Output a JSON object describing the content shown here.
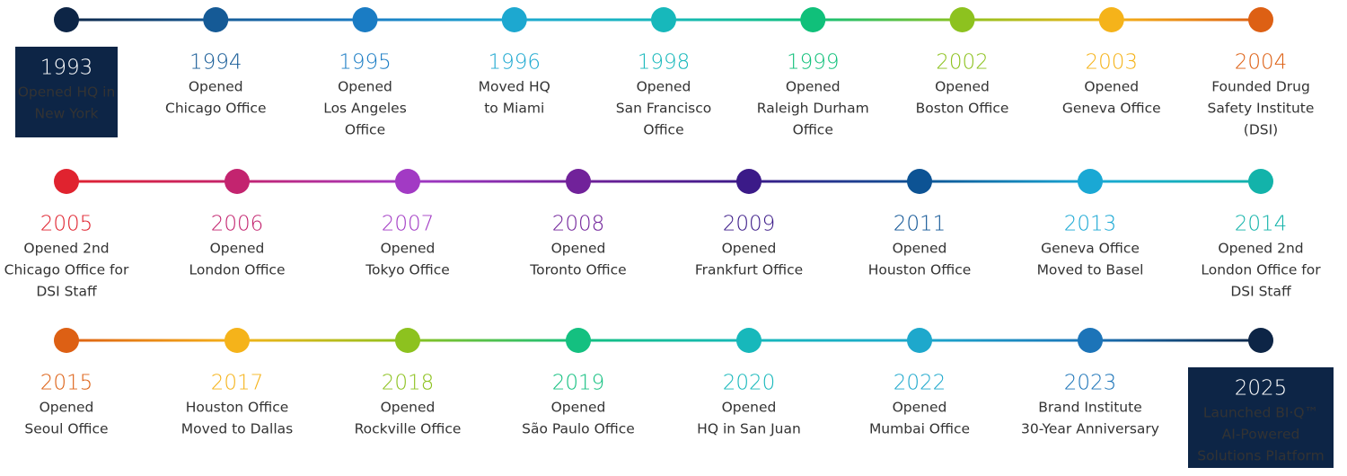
{
  "rows": [
    {
      "events": [
        {
          "year": "1993",
          "lines": [
            "Opened HQ in",
            "New York"
          ],
          "color": "#0d2546",
          "highlight": true
        },
        {
          "year": "1994",
          "lines": [
            "Opened",
            "Chicago Office"
          ],
          "color": "#155a96"
        },
        {
          "year": "1995",
          "lines": [
            "Opened",
            "Los Angeles",
            "Office"
          ],
          "color": "#1a7cc4"
        },
        {
          "year": "1996",
          "lines": [
            "Moved HQ",
            "to Miami"
          ],
          "color": "#1da8d0"
        },
        {
          "year": "1998",
          "lines": [
            "Opened",
            "San Francisco",
            "Office"
          ],
          "color": "#17b8bb"
        },
        {
          "year": "1999",
          "lines": [
            "Opened",
            "Raleigh Durham",
            "Office"
          ],
          "color": "#10c07a"
        },
        {
          "year": "2002",
          "lines": [
            "Opened",
            "Boston Office"
          ],
          "color": "#8dc21f"
        },
        {
          "year": "2003",
          "lines": [
            "Opened",
            "Geneva Office"
          ],
          "color": "#f5b31a"
        },
        {
          "year": "2004",
          "lines": [
            "Founded Drug",
            "Safety Institute",
            "(DSI)"
          ],
          "color": "#dd6014"
        }
      ]
    },
    {
      "events": [
        {
          "year": "2005",
          "lines": [
            "Opened 2nd",
            "Chicago Office for",
            "DSI Staff"
          ],
          "color": "#e0232f"
        },
        {
          "year": "2006",
          "lines": [
            "Opened",
            "London Office"
          ],
          "color": "#c3246f"
        },
        {
          "year": "2007",
          "lines": [
            "Opened",
            "Tokyo Office"
          ],
          "color": "#a23ac4"
        },
        {
          "year": "2008",
          "lines": [
            "Opened",
            "Toronto Office"
          ],
          "color": "#71229a"
        },
        {
          "year": "2009",
          "lines": [
            "Opened",
            "Frankfurt Office"
          ],
          "color": "#3b1a88"
        },
        {
          "year": "2011",
          "lines": [
            "Opened",
            "Houston Office"
          ],
          "color": "#0d5394"
        },
        {
          "year": "2013",
          "lines": [
            "Geneva Office",
            "Moved to Basel"
          ],
          "color": "#1aa8d4"
        },
        {
          "year": "2014",
          "lines": [
            "Opened 2nd",
            "London Office for",
            "DSI Staff"
          ],
          "color": "#13b3aa"
        }
      ]
    },
    {
      "events": [
        {
          "year": "2015",
          "lines": [
            "Opened",
            "Seoul Office"
          ],
          "color": "#dd6014"
        },
        {
          "year": "2017",
          "lines": [
            "Houston Office",
            "Moved to Dallas"
          ],
          "color": "#f5b31a"
        },
        {
          "year": "2018",
          "lines": [
            "Opened",
            "Rockville Office"
          ],
          "color": "#8dc21f"
        },
        {
          "year": "2019",
          "lines": [
            "Opened",
            "São Paulo Office"
          ],
          "color": "#14c080"
        },
        {
          "year": "2020",
          "lines": [
            "Opened",
            "HQ in San Juan"
          ],
          "color": "#17b8bb"
        },
        {
          "year": "2022",
          "lines": [
            "Opened",
            "Mumbai Office"
          ],
          "color": "#1ea8cc"
        },
        {
          "year": "2023",
          "lines": [
            "Brand Institute",
            "30-Year Anniversary"
          ],
          "color": "#1c74b8"
        },
        {
          "year": "2025",
          "lines": [
            "Launched BI·Q™",
            "AI-Powered",
            "Solutions Platform"
          ],
          "color": "#0d2546",
          "highlight": true
        }
      ]
    }
  ]
}
